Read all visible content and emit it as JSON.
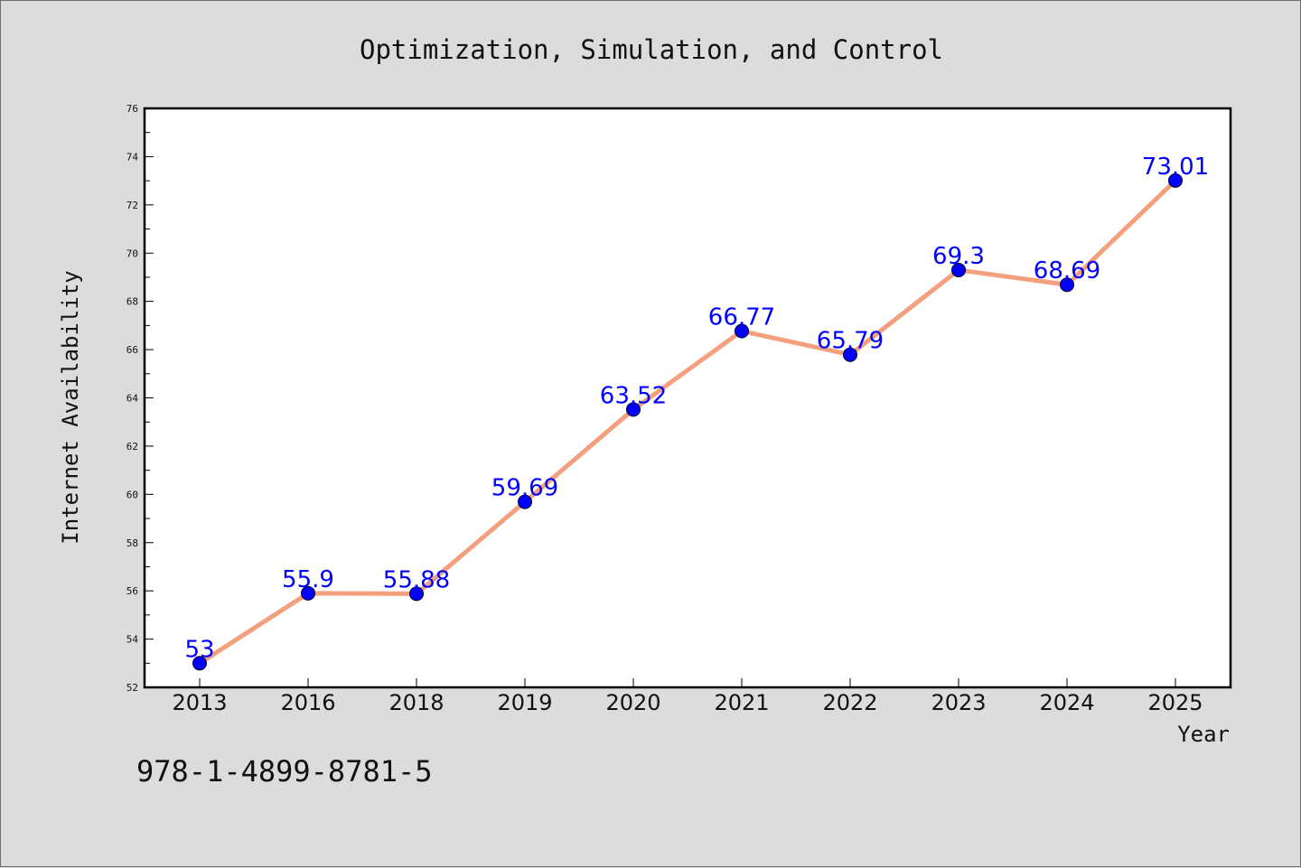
{
  "chart_data": {
    "type": "line",
    "title": "Optimization, Simulation, and Control",
    "xlabel": "Year",
    "ylabel": "Internet Availability",
    "categories": [
      "2013",
      "2016",
      "2018",
      "2019",
      "2020",
      "2021",
      "2022",
      "2023",
      "2024",
      "2025"
    ],
    "series": [
      {
        "values": [
          53,
          55.9,
          55.88,
          59.69,
          63.52,
          66.77,
          65.79,
          69.3,
          68.69,
          73.01
        ],
        "labels": [
          "53",
          "55.9",
          "55.88",
          "59.69",
          "63.52",
          "66.77",
          "65.79",
          "69.3",
          "68.69",
          "73.01"
        ],
        "line_color": "#f4a07e",
        "marker_color": "#0000ff"
      }
    ],
    "ylim": [
      52,
      76
    ],
    "yticks": [
      "52",
      "54",
      "56",
      "58",
      "60",
      "62",
      "64",
      "66",
      "68",
      "70",
      "72",
      "74",
      "76"
    ],
    "grid": false,
    "legend": "none"
  },
  "footer": {
    "isbn": "978-1-4899-8781-5"
  },
  "colors": {
    "background": "#dcdcdc",
    "plot_area": "#ffffff",
    "line": "#f4a07e",
    "marker": "#0000ff",
    "label": "#0000ff"
  }
}
